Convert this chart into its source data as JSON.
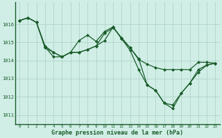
{
  "bg_color": "#d0eee6",
  "grid_color": "#b0d4c8",
  "line_color": "#1a5c2a",
  "marker_color": "#1a5c2a",
  "title": "Graphe pression niveau de la mer (hPa)",
  "title_color": "#1a5c2a",
  "xlim": [
    -0.5,
    23.5
  ],
  "ylim": [
    1010.5,
    1017.2
  ],
  "yticks": [
    1011,
    1012,
    1013,
    1014,
    1015,
    1016
  ],
  "xticks": [
    0,
    1,
    2,
    3,
    4,
    5,
    6,
    7,
    8,
    9,
    10,
    11,
    12,
    13,
    14,
    15,
    16,
    17,
    18,
    19,
    20,
    21,
    22,
    23
  ],
  "series": [
    [
      1016.2,
      1016.35,
      1016.1,
      1014.7,
      1014.45,
      1014.2,
      1014.45,
      1014.45,
      1014.6,
      1014.8,
      1015.5,
      1015.8,
      1015.25,
      1014.7,
      1014.05,
      1013.8,
      1013.6,
      1013.5,
      1013.5,
      1013.5,
      1013.5,
      1013.9,
      1013.9,
      1013.85
    ],
    [
      1016.2,
      1016.35,
      1016.1,
      1014.75,
      1014.2,
      1014.2,
      1014.45,
      1015.1,
      1015.4,
      1015.05,
      1015.6,
      1015.85,
      1015.2,
      1014.55,
      1013.5,
      1012.65,
      1012.35,
      1011.65,
      1011.55,
      1012.2,
      1012.75,
      1013.35,
      1013.75,
      1013.85
    ],
    [
      1016.2,
      1016.35,
      1016.1,
      1014.8,
      1014.45,
      1014.2,
      1014.45,
      1014.45,
      1014.6,
      1014.8,
      1015.1,
      1015.85,
      1015.2,
      1014.7,
      1014.1,
      1012.65,
      1012.35,
      1011.65,
      1011.35,
      1012.2,
      1012.75,
      1013.5,
      1013.75,
      1013.85
    ]
  ]
}
